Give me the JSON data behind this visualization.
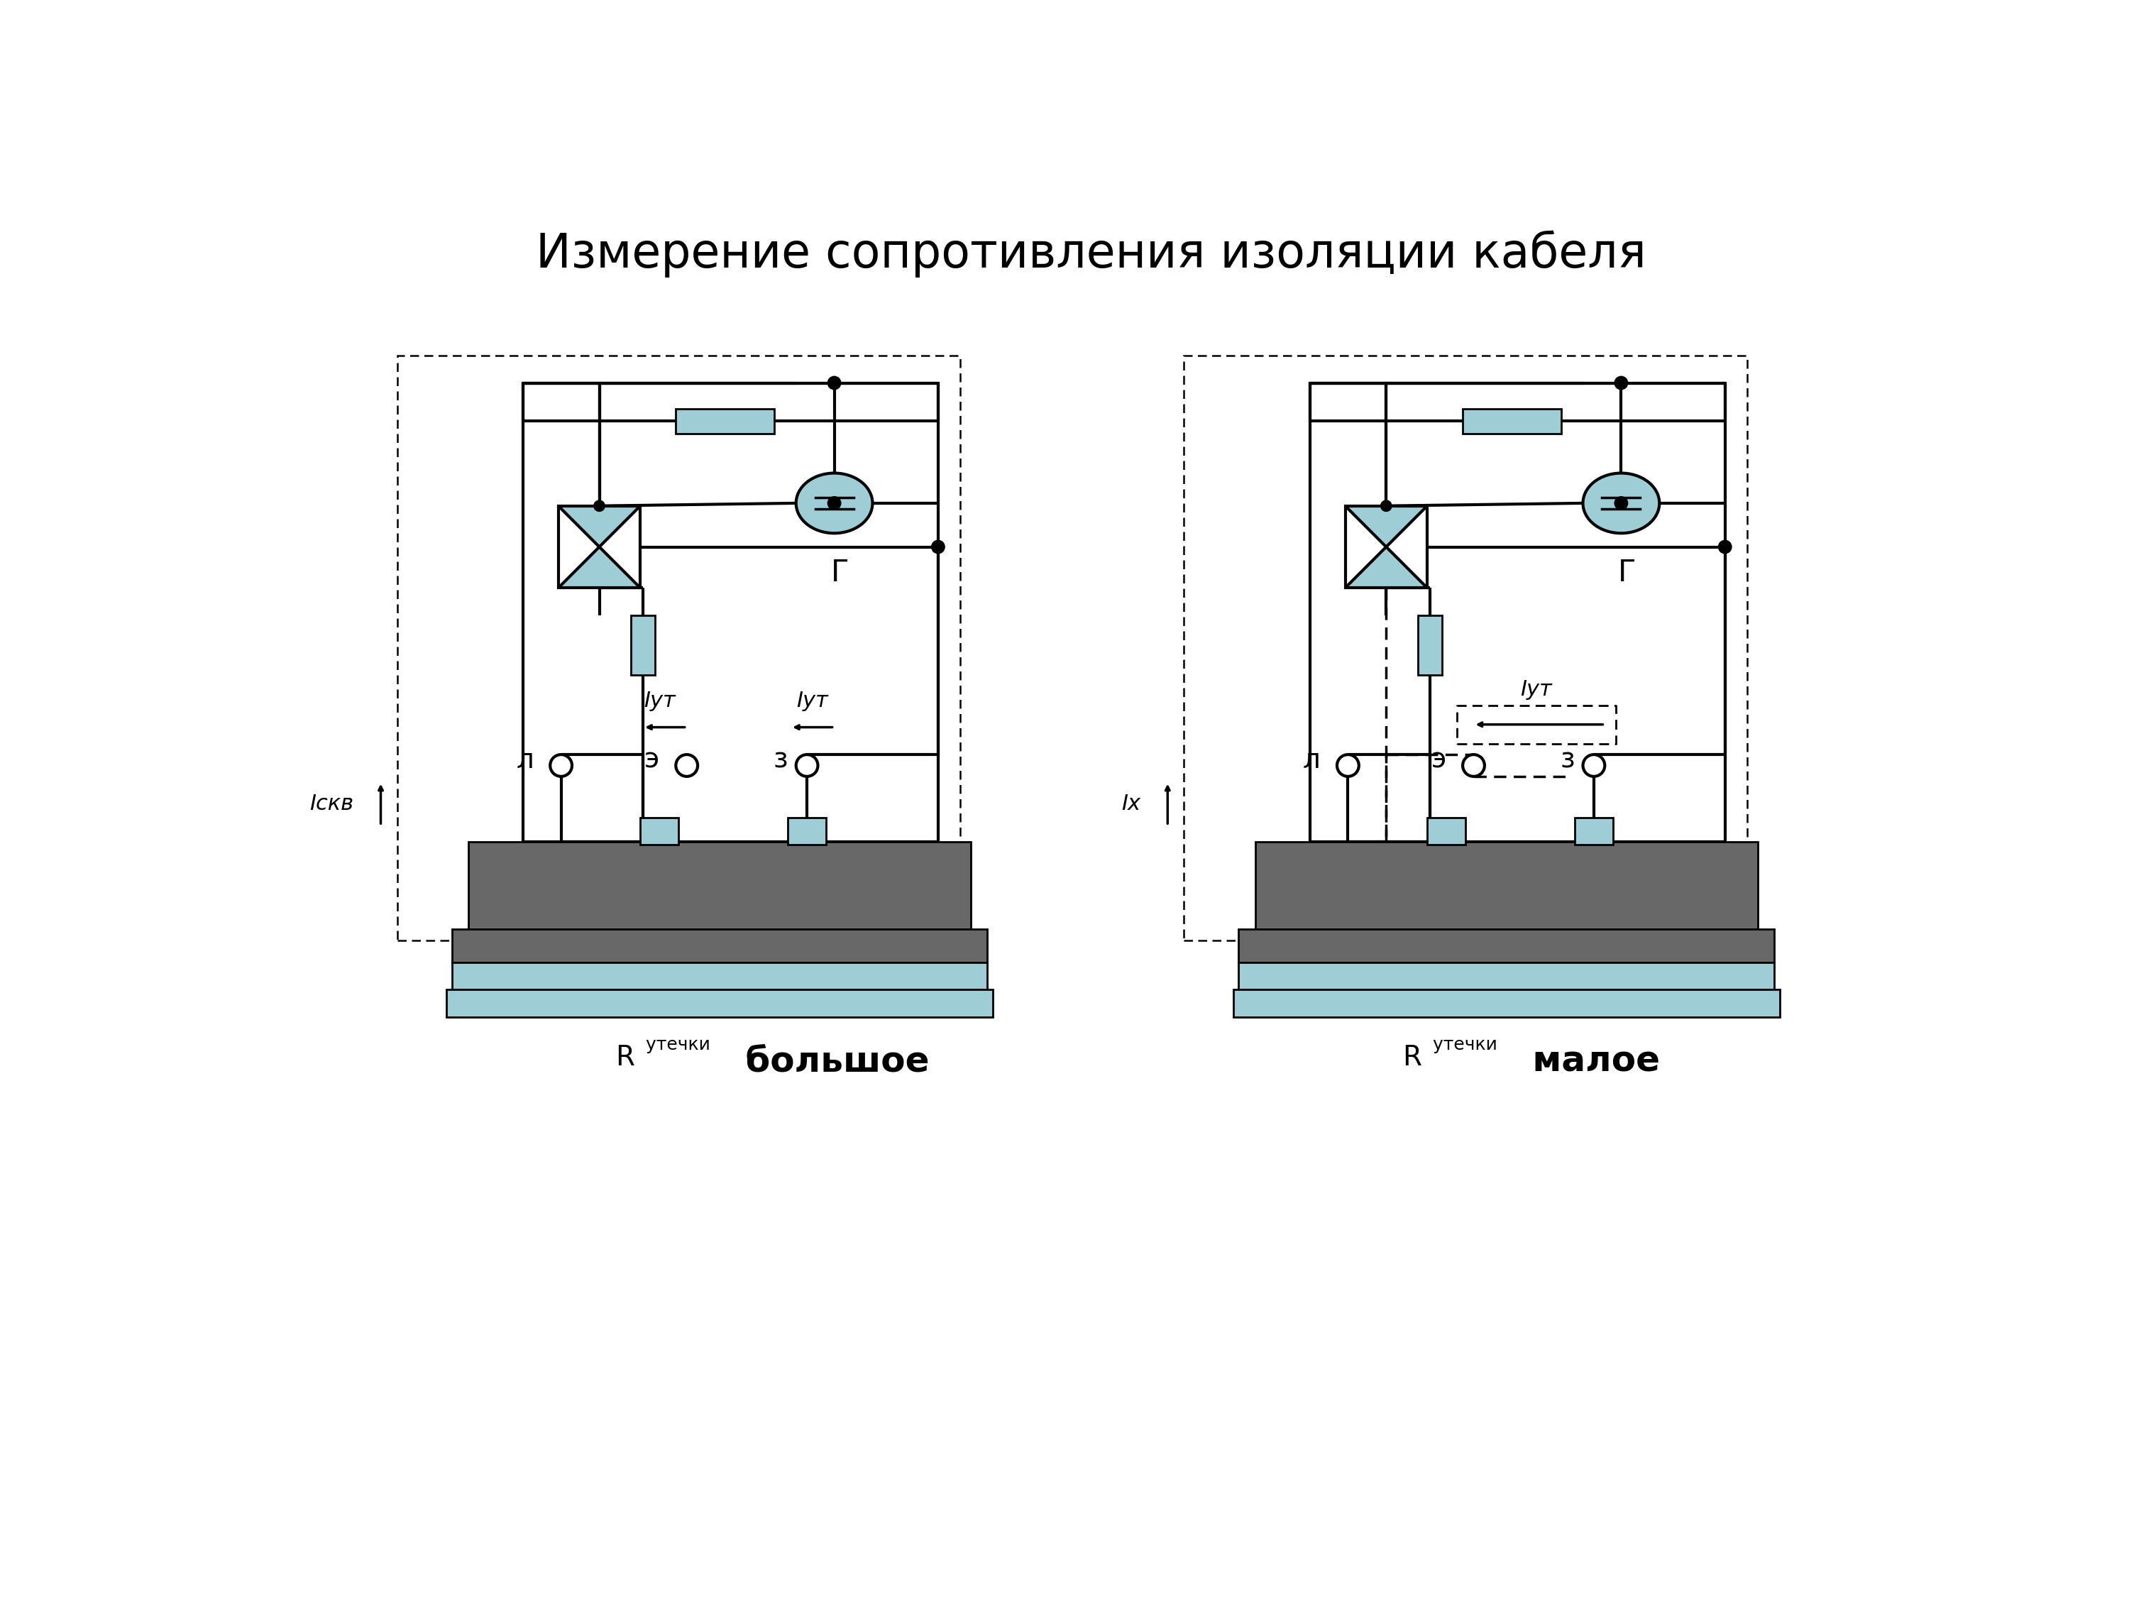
{
  "title": "Измерение сопротивления изоляции кабеля",
  "title_fontsize": 48,
  "bg_color": "#ffffff",
  "fill_color": "#9ecdd6",
  "cable_dark": "#686868",
  "cable_light": "#9ecdd6",
  "left_label_r": "R",
  "left_label_sub": " утечки",
  "left_label_val": " большое",
  "right_label_r": "R",
  "right_label_sub": " утечки",
  "right_label_val": " малое",
  "left_current1": "Iскв",
  "left_current2": "Iут",
  "left_current3": "Iут",
  "right_current1": "Iх",
  "right_current2": "Iут",
  "terminal_L": "л",
  "terminal_E": "э",
  "terminal_Z": "з",
  "generator_label": "Г"
}
